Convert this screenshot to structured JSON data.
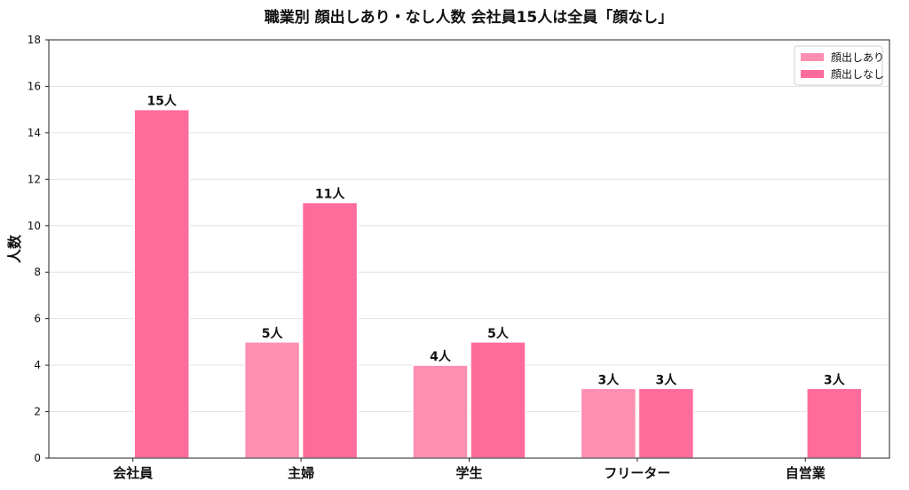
{
  "chart_data": {
    "type": "bar",
    "title": "職業別 顔出しあり・なし人数 会社員15人は全員「顔なし」",
    "ylabel": "人数",
    "xlabel": "",
    "ylim": [
      0,
      18
    ],
    "yticks": [
      0,
      2,
      4,
      6,
      8,
      10,
      12,
      14,
      16,
      18
    ],
    "grid": "horizontal",
    "legend_position": "top-right",
    "value_suffix": "人",
    "categories": [
      "会社員",
      "主婦",
      "学生",
      "フリーター",
      "自営業"
    ],
    "series": [
      {
        "name": "顔出しあり",
        "color": "#ff8fb0",
        "values": [
          0,
          5,
          4,
          3,
          0
        ]
      },
      {
        "name": "顔出しなし",
        "color": "#ff6b9a",
        "values": [
          15,
          11,
          5,
          3,
          3
        ]
      }
    ]
  }
}
